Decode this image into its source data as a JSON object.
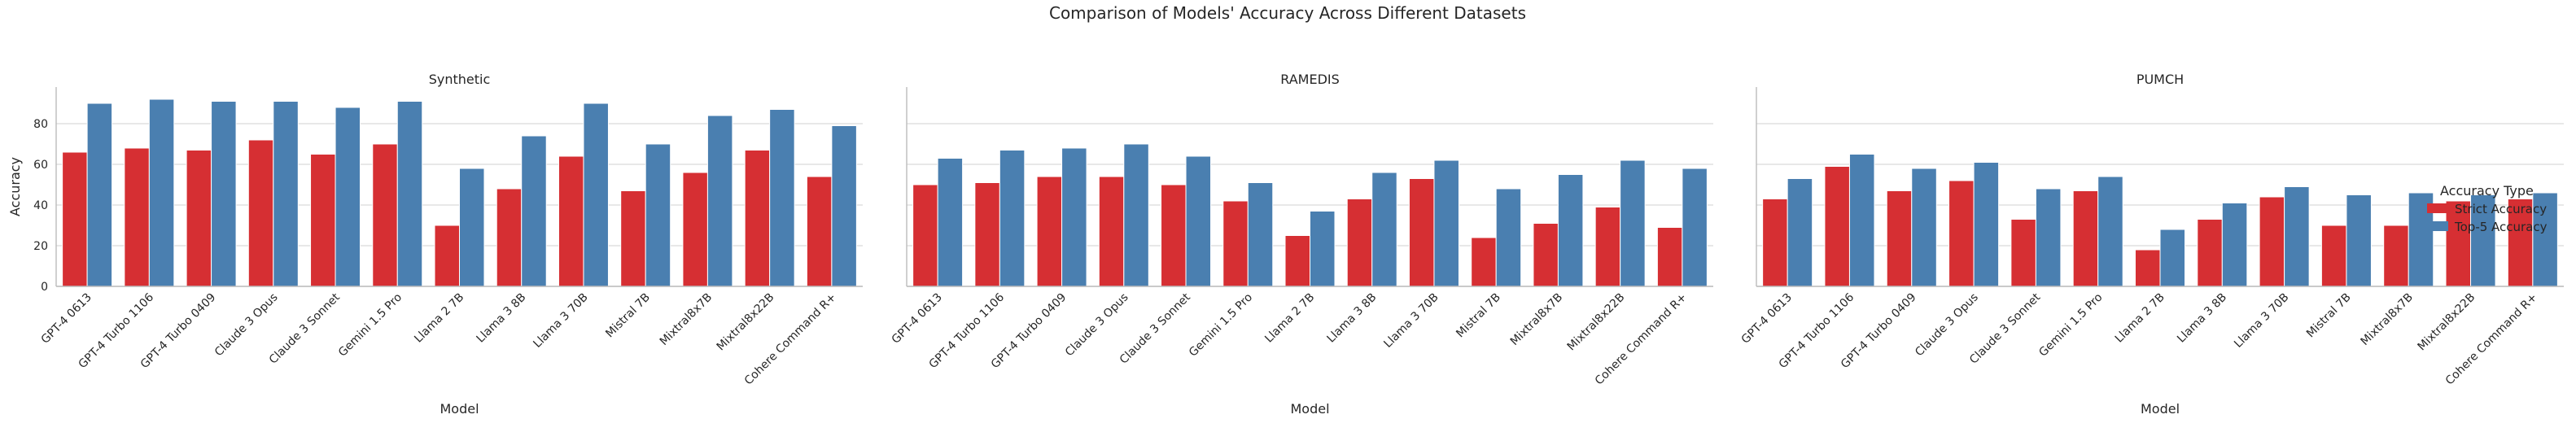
{
  "chart_data": {
    "type": "bar",
    "title": "Comparison of Models' Accuracy Across Different Datasets",
    "xlabel": "Model",
    "ylabel": "Accuracy",
    "ylim": [
      0,
      98
    ],
    "yticks": [
      0,
      20,
      40,
      60,
      80
    ],
    "grid": true,
    "legend": {
      "title": "Accuracy Type",
      "placement": "right",
      "entries": [
        "Strict Accuracy",
        "Top-5 Accuracy"
      ]
    },
    "colors": {
      "Strict Accuracy": "#d62f33",
      "Top-5 Accuracy": "#4a7fb0"
    },
    "categories": [
      "GPT-4 0613",
      "GPT-4 Turbo 1106",
      "GPT-4 Turbo 0409",
      "Claude 3 Opus",
      "Claude 3 Sonnet",
      "Gemini 1.5 Pro",
      "Llama 2 7B",
      "Llama 3 8B",
      "Llama 3 70B",
      "Mistral 7B",
      "Mixtral8x7B",
      "Mixtral8x22B",
      "Cohere Command R+"
    ],
    "panels": [
      {
        "title": "Synthetic",
        "series": [
          {
            "name": "Strict Accuracy",
            "values": [
              66,
              68,
              67,
              72,
              65,
              70,
              30,
              48,
              64,
              47,
              56,
              67,
              54
            ]
          },
          {
            "name": "Top-5 Accuracy",
            "values": [
              90,
              92,
              91,
              91,
              88,
              91,
              58,
              74,
              90,
              70,
              84,
              87,
              79
            ]
          }
        ]
      },
      {
        "title": "RAMEDIS",
        "series": [
          {
            "name": "Strict Accuracy",
            "values": [
              50,
              51,
              54,
              54,
              50,
              42,
              25,
              43,
              53,
              24,
              31,
              39,
              29
            ]
          },
          {
            "name": "Top-5 Accuracy",
            "values": [
              63,
              67,
              68,
              70,
              64,
              51,
              37,
              56,
              62,
              48,
              55,
              62,
              58
            ]
          }
        ]
      },
      {
        "title": "PUMCH",
        "series": [
          {
            "name": "Strict Accuracy",
            "values": [
              43,
              59,
              47,
              52,
              33,
              47,
              18,
              33,
              44,
              30,
              30,
              42,
              43
            ]
          },
          {
            "name": "Top-5 Accuracy",
            "values": [
              53,
              65,
              58,
              61,
              48,
              54,
              28,
              41,
              49,
              45,
              46,
              45,
              46
            ]
          }
        ]
      }
    ]
  }
}
